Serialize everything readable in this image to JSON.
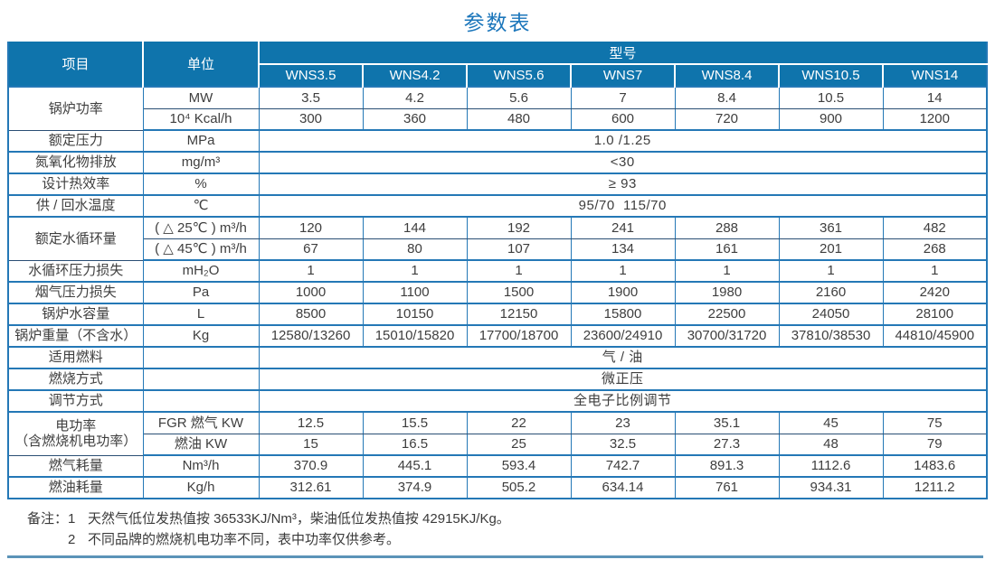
{
  "title": "参数表",
  "colors": {
    "header_bg": "#0f74ac",
    "header_text": "#ffffff",
    "border_blue": "#2478b6",
    "sub_divider": "#2a4e74",
    "title_blue": "#1b76bb",
    "bottom_rule": "#5b93b8",
    "body_text": "#3e3e3e"
  },
  "table": {
    "header": {
      "item_label": "项目",
      "unit_label": "单位",
      "model_label": "型号",
      "models": [
        "WNS3.5",
        "WNS4.2",
        "WNS5.6",
        "WNS7",
        "WNS8.4",
        "WNS10.5",
        "WNS14"
      ]
    },
    "rows": [
      {
        "label": "锅炉功率",
        "rowspan": 2,
        "unit": "MW",
        "values": [
          "3.5",
          "4.2",
          "5.6",
          "7",
          "8.4",
          "10.5",
          "14"
        ],
        "sep": "thin"
      },
      {
        "unit": "10⁴ Kcal/h",
        "values": [
          "300",
          "360",
          "480",
          "600",
          "720",
          "900",
          "1200"
        ]
      },
      {
        "label": "额定压力",
        "unit": "MPa",
        "value": "1.0 /1.25"
      },
      {
        "label": "氮氧化物排放",
        "unit": "mg/m³",
        "value": "<30"
      },
      {
        "label": "设计热效率",
        "unit": "%",
        "value": "≥ 93"
      },
      {
        "label": "供 / 回水温度",
        "unit": "℃",
        "value": "95/70  115/70"
      },
      {
        "label": "额定水循环量",
        "rowspan": 2,
        "unit": "( △ 25℃ ) m³/h",
        "values": [
          "120",
          "144",
          "192",
          "241",
          "288",
          "361",
          "482"
        ],
        "sep": "thin"
      },
      {
        "unit": "( △ 45℃ ) m³/h",
        "values": [
          "67",
          "80",
          "107",
          "134",
          "161",
          "201",
          "268"
        ]
      },
      {
        "label": "水循环压力损失",
        "unit": "mH₂O",
        "values": [
          "1",
          "1",
          "1",
          "1",
          "1",
          "1",
          "1"
        ]
      },
      {
        "label": "烟气压力损失",
        "unit": "Pa",
        "values": [
          "1000",
          "1100",
          "1500",
          "1900",
          "1980",
          "2160",
          "2420"
        ]
      },
      {
        "label": "锅炉水容量",
        "unit": "L",
        "values": [
          "8500",
          "10150",
          "12150",
          "15800",
          "22500",
          "24050",
          "28100"
        ]
      },
      {
        "label": "锅炉重量（不含水）",
        "unit": "Kg",
        "values": [
          "12580/13260",
          "15010/15820",
          "17700/18700",
          "23600/24910",
          "30700/31720",
          "37810/38530",
          "44810/45900"
        ]
      },
      {
        "label": "适用燃料",
        "unit": "",
        "value": "气 / 油"
      },
      {
        "label": "燃烧方式",
        "unit": "",
        "value": "微正压"
      },
      {
        "label": "调节方式",
        "unit": "",
        "value": "全电子比例调节"
      },
      {
        "label": "电功率\n（含燃烧机电功率）",
        "rowspan": 2,
        "unit": "FGR 燃气 KW",
        "values": [
          "12.5",
          "15.5",
          "22",
          "23",
          "35.1",
          "45",
          "75"
        ],
        "sep": "thin"
      },
      {
        "unit": "燃油 KW",
        "values": [
          "15",
          "16.5",
          "25",
          "32.5",
          "27.3",
          "48",
          "79"
        ]
      },
      {
        "label": "燃气耗量",
        "unit": "Nm³/h",
        "values": [
          "370.9",
          "445.1",
          "593.4",
          "742.7",
          "891.3",
          "1112.6",
          "1483.6"
        ]
      },
      {
        "label": "燃油耗量",
        "unit": "Kg/h",
        "values": [
          "312.61",
          "374.9",
          "505.2",
          "634.14",
          "761",
          "934.31",
          "1211.2"
        ]
      }
    ]
  },
  "notes": {
    "prefix": "备注：",
    "items": [
      {
        "num": "1",
        "text": "天然气低位发热值按 36533KJ/Nm³，柴油低位发热值按 42915KJ/Kg。"
      },
      {
        "num": "2",
        "text": "不同品牌的燃烧机电功率不同，表中功率仅供参考。"
      }
    ]
  }
}
